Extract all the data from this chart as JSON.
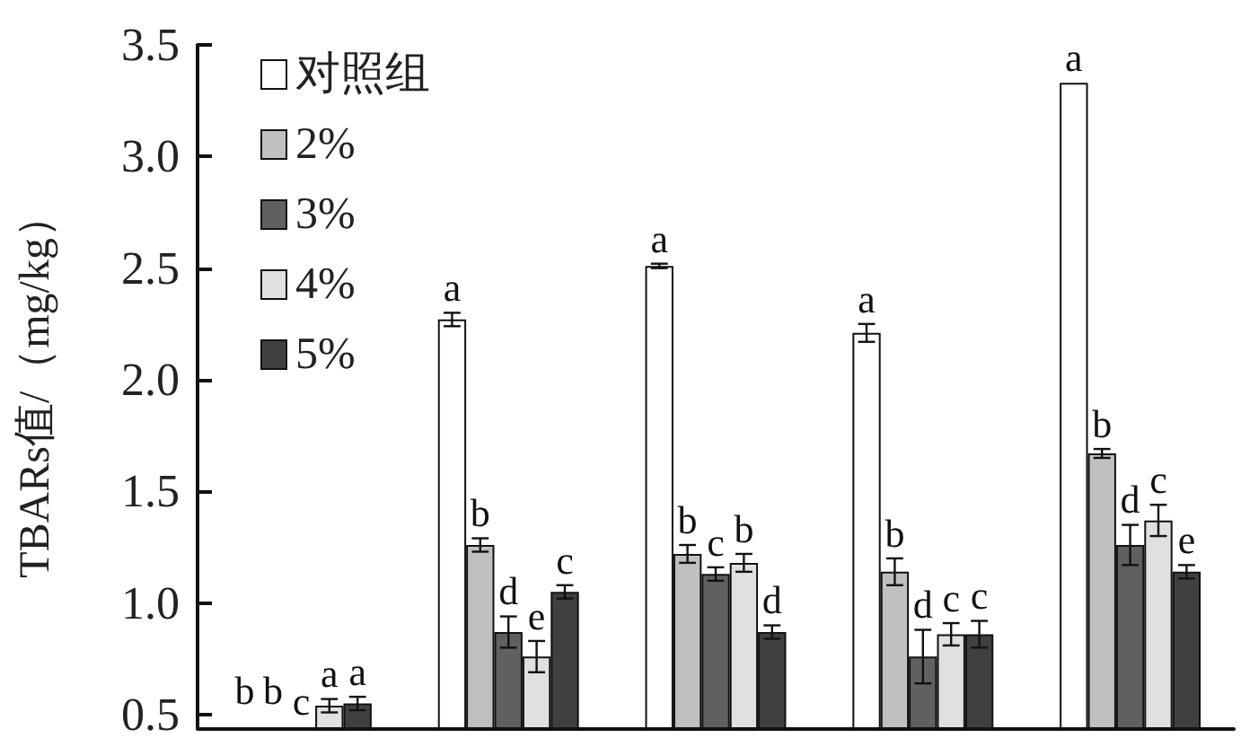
{
  "chart_data": {
    "type": "bar",
    "ylabel": "TBARs值/（mg/kg）",
    "categories": [
      null,
      null,
      null,
      null,
      null
    ],
    "series": [
      {
        "name": "对照组",
        "color": "#ffffff",
        "values": [
          null,
          2.27,
          2.51,
          2.21,
          3.33
        ],
        "errors": [
          null,
          0.03,
          0.01,
          0.04,
          null
        ],
        "value_labels": [
          "b",
          "a",
          "a",
          "a",
          "a"
        ]
      },
      {
        "name": "2%",
        "color": "#c0c0c0",
        "values": [
          null,
          1.26,
          1.22,
          1.14,
          1.67
        ],
        "errors": [
          null,
          0.03,
          0.04,
          0.06,
          0.02
        ],
        "value_labels": [
          "b",
          "b",
          "b",
          "b",
          "b"
        ]
      },
      {
        "name": "3%",
        "color": "#606060",
        "values": [
          null,
          0.87,
          1.13,
          0.76,
          1.26
        ],
        "errors": [
          null,
          0.07,
          0.03,
          0.12,
          0.09
        ],
        "value_labels": [
          "c",
          "d",
          "c",
          "d",
          "d"
        ]
      },
      {
        "name": "4%",
        "color": "#e0e0e0",
        "values": [
          0.54,
          0.76,
          1.18,
          0.86,
          1.37
        ],
        "errors": [
          0.03,
          0.07,
          0.04,
          0.05,
          0.07
        ],
        "value_labels": [
          "a",
          "e",
          "b",
          "c",
          "c"
        ]
      },
      {
        "name": "5%",
        "color": "#404040",
        "values": [
          0.55,
          1.05,
          0.87,
          0.86,
          1.14
        ],
        "errors": [
          0.03,
          0.03,
          0.03,
          0.06,
          0.03
        ],
        "value_labels": [
          "a",
          "c",
          "d",
          "c",
          "e"
        ]
      }
    ],
    "ylim": [
      0.44,
      3.5
    ],
    "yticks": [
      {
        "value": 0.5,
        "label": "0.5"
      },
      {
        "value": 1,
        "label": "1.0"
      },
      {
        "value": 1.5,
        "label": "1.5"
      },
      {
        "value": 2,
        "label": "2.0"
      },
      {
        "value": 2.5,
        "label": "2.5"
      },
      {
        "value": 3,
        "label": "3.0"
      },
      {
        "value": 3.5,
        "label": "3.5"
      }
    ],
    "grid": false,
    "legend": "top left",
    "tick_labels": "y"
  }
}
